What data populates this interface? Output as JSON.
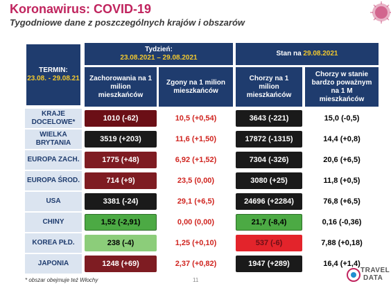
{
  "title": "Koronawirus: COVID-19",
  "subtitle": "Tygodniowe dane z poszczególnych krajów i obszarów",
  "termin": {
    "label": "TERMIN:",
    "range": "23.08. - 29.08.21"
  },
  "tydzien": {
    "label": "Tydzień:",
    "range": "23.08.2021 – 29.08.2021"
  },
  "stan": {
    "label": "Stan na",
    "date": "29.08.2021"
  },
  "columns": [
    "Zachorowania na 1 milion mieszkańców",
    "Zgony na 1 milion mieszkańców",
    "Chorzy na 1 milion mieszkańców",
    "Chorzy w stanie bardzo poważnym na 1 M mieszkańców"
  ],
  "rows": [
    {
      "label": "KRAJE DOCELOWE*",
      "c1": "1010 (-62)",
      "c2": "10,5 (+0,54)",
      "c3": "3643 (-221)",
      "c4": "15,0 (-0,5)"
    },
    {
      "label": "WIELKA BRYTANIA",
      "c1": "3519 (+203)",
      "c2": "11,6 (+1,50)",
      "c3": "17872 (-1315)",
      "c4": "14,4 (+0,8)"
    },
    {
      "label": "EUROPA ZACH.",
      "c1": "1775 (+48)",
      "c2": "6,92 (+1,52)",
      "c3": "7304 (-326)",
      "c4": "20,6 (+6,5)"
    },
    {
      "label": "EUROPA ŚROD.",
      "c1": "714 (+9)",
      "c2": "23,5 (0,00)",
      "c3": "3080 (+25)",
      "c4": "11,8 (+0,5)"
    },
    {
      "label": "USA",
      "c1": "3381 (-24)",
      "c2": "29,1 (+6,5)",
      "c3": "24696 (+2284)",
      "c4": "76,8 (+6,5)"
    },
    {
      "label": "CHINY",
      "c1": "1,52 (-2,91)",
      "c2": "0,00 (0,00)",
      "c3": "21,7 (-8,4)",
      "c4": "0,16 (-0,36)"
    },
    {
      "label": "KOREA PŁD.",
      "c1": "238 (-4)",
      "c2": "1,25 (+0,10)",
      "c3": "537 (-6)",
      "c4": "7,88 (+0,18)"
    },
    {
      "label": "JAPONIA",
      "c1": "1248 (+69)",
      "c2": "2,37 (+0,82)",
      "c3": "1947 (+289)",
      "c4": "16,4 (+1,4)"
    }
  ],
  "footnote": "* obszar obejmuje też Włochy",
  "page_number": "11",
  "logo": {
    "line1": "TRAVEL",
    "line2": "DATA"
  }
}
